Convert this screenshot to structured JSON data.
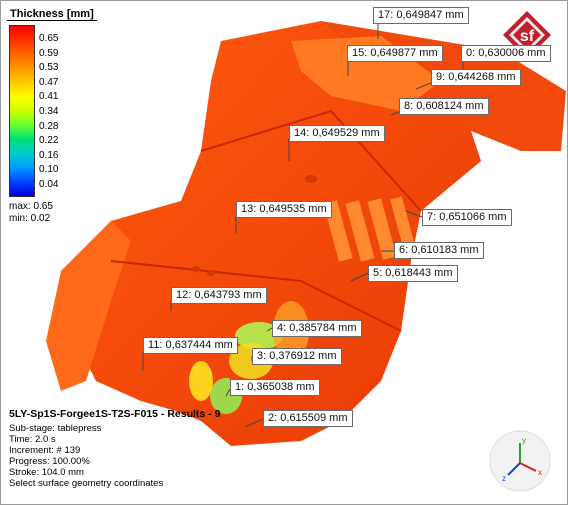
{
  "legend": {
    "title": "Thickness [mm]",
    "ticks": [
      "0.65",
      "0.59",
      "0.53",
      "0.47",
      "0.41",
      "0.34",
      "0.28",
      "0.22",
      "0.16",
      "0.10",
      "0.04"
    ],
    "max_label": "max: 0.65",
    "min_label": "min: 0.02",
    "colors": [
      "#ff0000",
      "#ff3300",
      "#ff6600",
      "#ff9900",
      "#ffcc00",
      "#ffff00",
      "#ccff00",
      "#66ff33",
      "#00dd77",
      "#00cccc",
      "#0099ff",
      "#0044ff",
      "#0000dd"
    ]
  },
  "labels": [
    {
      "id": "17",
      "text": "17: 0,649847 mm"
    },
    {
      "id": "15",
      "text": "15: 0,649877 mm"
    },
    {
      "id": "10",
      "text": "0: 0,630006 mm"
    },
    {
      "id": "9",
      "text": "9: 0,644268 mm"
    },
    {
      "id": "8",
      "text": "8: 0,608124 mm"
    },
    {
      "id": "14",
      "text": "14: 0,649529 mm"
    },
    {
      "id": "13",
      "text": "13: 0,649535 mm"
    },
    {
      "id": "7",
      "text": "7: 0,651066 mm"
    },
    {
      "id": "6",
      "text": "6: 0,610183 mm"
    },
    {
      "id": "5",
      "text": "5: 0,618443 mm"
    },
    {
      "id": "12",
      "text": "12: 0,643793 mm"
    },
    {
      "id": "4",
      "text": "4: 0,385784 mm"
    },
    {
      "id": "11",
      "text": "11: 0,637444 mm"
    },
    {
      "id": "3",
      "text": "3: 0,376912 mm"
    },
    {
      "id": "1",
      "text": "1: 0,365038 mm"
    },
    {
      "id": "2",
      "text": "2: 0,615509 mm"
    }
  ],
  "info": {
    "title": "5LY-Sp1S-Forgee1S-T2S-F015 - Results - 9",
    "substage": "Sub-stage: tablepress",
    "time": "Time: 2.0 s",
    "increment": "Increment: # 139",
    "progress": "Progress: 100.00%",
    "stroke": "Stroke: 104.0 mm",
    "select": "Select surface geometry coordinates"
  },
  "logo_text": "sf",
  "axis": {
    "x": "x",
    "y": "y",
    "z": "z"
  }
}
